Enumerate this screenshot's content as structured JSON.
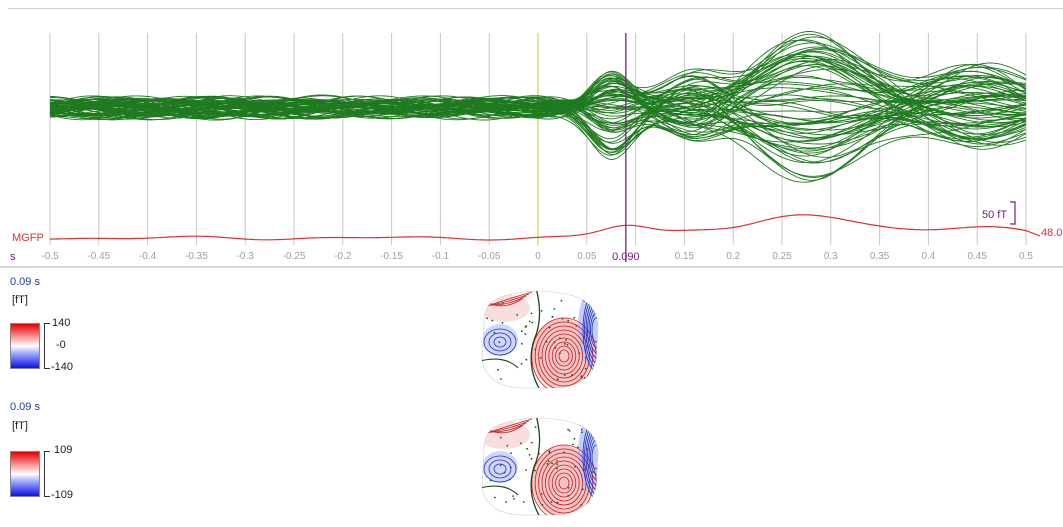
{
  "axis": {
    "unit": "s",
    "ticks": [
      "-0.5",
      "-0.45",
      "-0.4",
      "-0.35",
      "-0.3",
      "-0.25",
      "-0.2",
      "-0.15",
      "-0.1",
      "-0.05",
      "0",
      "0.05",
      "0.1",
      "0.15",
      "0.2",
      "0.25",
      "0.3",
      "0.35",
      "0.4",
      "0.45",
      "0.5"
    ],
    "tick_values": [
      -0.5,
      -0.45,
      -0.4,
      -0.35,
      -0.3,
      -0.25,
      -0.2,
      -0.15,
      -0.1,
      -0.05,
      0,
      0.05,
      0.1,
      0.15,
      0.2,
      0.25,
      0.3,
      0.35,
      0.4,
      0.45,
      0.5
    ],
    "range": [
      -0.5,
      0.5
    ]
  },
  "cursor": {
    "time": 0.09,
    "label": "0.090",
    "color": "#7a1a8a"
  },
  "zero_marker_color": "#c8c830",
  "butterfly": {
    "color": "#1f7a1f",
    "scale_label": "50 fT"
  },
  "mgfp": {
    "label": "MGFP",
    "value_label": "48.0",
    "color": "#e03030"
  },
  "maps": [
    {
      "time_label": "0.09 s",
      "unit": "[fT]",
      "max_label": "140",
      "mid_label": "-0",
      "min_label": "-140"
    },
    {
      "time_label": "0.09 s",
      "unit": "[fT]",
      "max_label": "109",
      "mid_label": "",
      "min_label": "-109"
    }
  ],
  "colors": {
    "positive": "#e00000",
    "negative": "#1010e0",
    "grid": "#c8c8c8"
  }
}
